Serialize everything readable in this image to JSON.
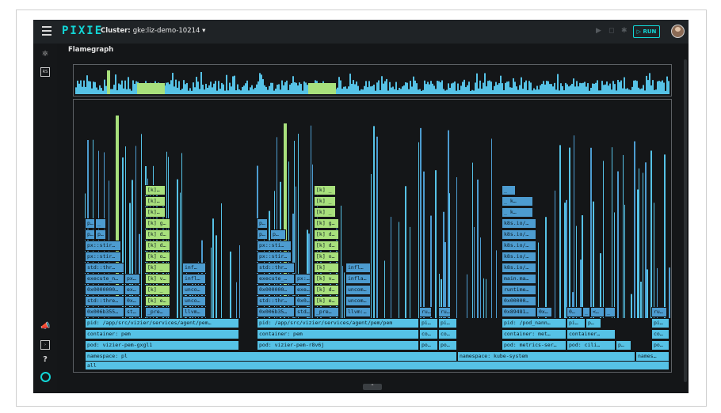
{
  "app": {
    "logo": "PIXIE",
    "cluster_label": "Cluster:",
    "cluster_name": "gke:liz-demo-10214",
    "run_label": "RUN",
    "page_title": "Flamegraph",
    "sidebar_badge": "RS"
  },
  "colors": {
    "background": "#151719",
    "accent": "#12d6d6",
    "frame_blue": "#56c2e6",
    "frame_deep_blue": "#4d9cd0",
    "frame_green": "#a8e07c"
  },
  "icons": {
    "topbar": [
      "menu-icon",
      "play-icon",
      "stop-icon",
      "settings-icon",
      "play-icon"
    ],
    "sidebar": [
      "atom-icon",
      "rs-badge-icon",
      "announce-icon",
      "terminal-icon",
      "help-icon",
      "pixie-ring-icon"
    ],
    "collapse": "chevron-up-icon"
  },
  "flamegraph": {
    "root": "all",
    "namespaces": [
      "namespace: pl",
      "namespace: kube-system",
      "names…"
    ],
    "pods": [
      "pod: vizier-pem-gxgl1",
      "pod: vizier-pem-r8v6j",
      "po…",
      "po…",
      "pod: metrics-ser…",
      "pod: cili…",
      "p…",
      "po…"
    ],
    "containers": [
      "container: pem",
      "container: pem",
      "co…",
      "co…",
      "container: met…",
      "container…",
      "co…"
    ],
    "pids": [
      "pid: /app/src/vizier/services/agent/pem…",
      "pid: /app/src/vizier/services/agent/pem/pem",
      "pi…",
      "pi…",
      "pid: /pod_nann…",
      "pi…",
      "p…",
      "pi…"
    ],
    "stack_a": [
      "0x006b355…",
      "std::thre…",
      "0x0000000…",
      "execute_n…",
      "std::thr…",
      "px::stir…",
      "px::stir…",
      "p…",
      "p…"
    ],
    "stack_a2": [
      "st…",
      "0x…",
      "ex…",
      "px…"
    ],
    "stack_a3": [
      "_pre…",
      "[k] e…",
      "[k] _",
      "[k] v…",
      "[k] _",
      "[k] o…",
      "[k] d…",
      "[k] d…",
      "[k] g…",
      "[k]…",
      "[k]…",
      "[k]…"
    ],
    "stack_a4": [
      "llvm…",
      "unco…",
      "unco…",
      "infl…",
      "inf…"
    ],
    "stack_a1b": [
      "…",
      "p…",
      "_"
    ],
    "stack_b": [
      "0x006b35…",
      "std::thr…",
      "0x000000…",
      "execute_…",
      "std::thr…",
      "px::stir…",
      "px::sti…",
      "p…",
      "p…"
    ],
    "stack_b2": [
      "std…",
      "0x0…",
      "exe…",
      "px:…"
    ],
    "stack_b3": [
      "_pre…",
      "[k] e…",
      "[k] d…",
      "[k] v…",
      "[k] _",
      "[k] o…",
      "[k] d…",
      "[k] d…",
      "[k] g…",
      "[k] _",
      "[k] _",
      "[k] _"
    ],
    "stack_b4": [
      "llvm:…",
      "uncom…",
      "uncom…",
      "infla…",
      "infl…"
    ],
    "stack_b1b": [
      "…",
      "p…"
    ],
    "stack_c": [
      "0x89481…",
      "0x00000…",
      "runtime…",
      "main.ma…",
      "k8s.io/…",
      "k8s.io/…",
      "k8s.io/…",
      "k8s.io/…",
      "k8s.io/…",
      "_ k…",
      "_ k…",
      "_"
    ],
    "misc": [
      "ru…",
      "ru…",
      "0…",
      "0x…",
      "_",
      "<…",
      "_",
      "ru…"
    ]
  }
}
